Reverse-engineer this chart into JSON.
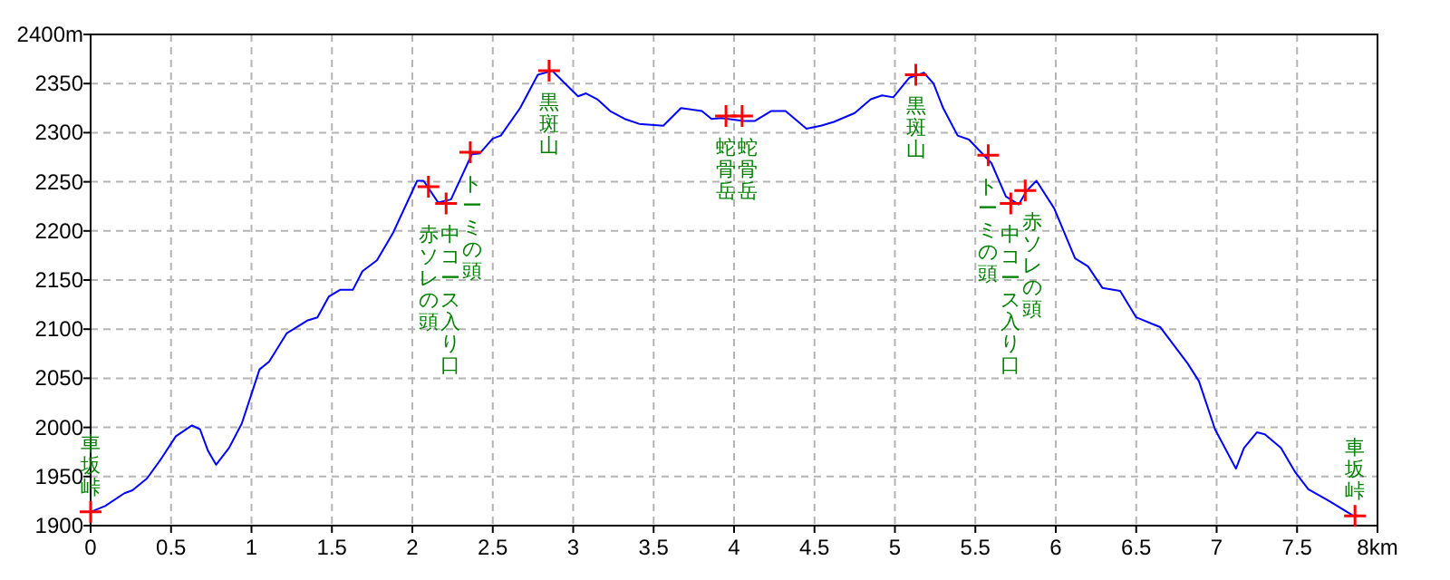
{
  "chart_data": {
    "type": "line",
    "xlim": [
      0,
      8
    ],
    "ylim": [
      1900,
      2400
    ],
    "xticks": [
      0,
      0.5,
      1,
      1.5,
      2,
      2.5,
      3,
      3.5,
      4,
      4.5,
      5,
      5.5,
      6,
      6.5,
      7,
      7.5,
      {
        "value": 8,
        "label": "8km"
      }
    ],
    "yticks": [
      1900,
      1950,
      2000,
      2050,
      2100,
      2150,
      2200,
      2250,
      2300,
      2350,
      {
        "value": 2400,
        "label": "2400m"
      }
    ],
    "grid": true,
    "series": [
      {
        "type": "line",
        "color": "#0000ff",
        "x": [
          0,
          0.09,
          0.21,
          0.26,
          0.35,
          0.43,
          0.53,
          0.63,
          0.68,
          0.73,
          0.78,
          0.86,
          0.94,
          1.05,
          1.11,
          1.22,
          1.28,
          1.35,
          1.41,
          1.48,
          1.55,
          1.63,
          1.69,
          1.78,
          1.88,
          2.03,
          2.07,
          2.16,
          2.24,
          2.37,
          2.42,
          2.5,
          2.55,
          2.67,
          2.78,
          2.87,
          2.95,
          3.03,
          3.08,
          3.15,
          3.23,
          3.32,
          3.41,
          3.56,
          3.67,
          3.8,
          3.86,
          3.92,
          4.06,
          4.13,
          4.23,
          4.32,
          4.45,
          4.54,
          4.62,
          4.75,
          4.85,
          4.92,
          4.99,
          5.09,
          5.18,
          5.24,
          5.3,
          5.39,
          5.46,
          5.6,
          5.69,
          5.77,
          5.82,
          5.88,
          5.99,
          6.12,
          6.2,
          6.29,
          6.4,
          6.5,
          6.65,
          6.82,
          6.89,
          6.99,
          7.12,
          7.17,
          7.25,
          7.3,
          7.4,
          7.49,
          7.57,
          7.7,
          7.85
        ],
        "values": [
          1914,
          1920,
          1933,
          1936,
          1948,
          1966,
          1991,
          2002,
          1998,
          1976,
          1962,
          1979,
          2004,
          2059,
          2067,
          2096,
          2102,
          2109,
          2112,
          2133,
          2140,
          2140,
          2159,
          2170,
          2198,
          2251,
          2251,
          2229,
          2232,
          2278,
          2279,
          2294,
          2297,
          2325,
          2359,
          2363,
          2350,
          2337,
          2340,
          2334,
          2322,
          2314,
          2309,
          2307,
          2325,
          2322,
          2314,
          2315,
          2312,
          2312,
          2322,
          2322,
          2304,
          2307,
          2311,
          2320,
          2334,
          2338,
          2336,
          2356,
          2361,
          2350,
          2325,
          2297,
          2293,
          2269,
          2235,
          2227,
          2241,
          2251,
          2223,
          2172,
          2164,
          2142,
          2139,
          2112,
          2102,
          2065,
          2047,
          1998,
          1958,
          1979,
          1995,
          1993,
          1979,
          1954,
          1937,
          1925,
          1910
        ]
      },
      {
        "type": "scatter",
        "color": "#ff0000",
        "marker": "cross",
        "x": [
          0,
          2.1,
          2.21,
          2.36,
          2.85,
          3.95,
          4.05,
          5.13,
          5.58,
          5.72,
          5.81,
          7.86
        ],
        "values": [
          1914,
          2245,
          2228,
          2280,
          2363,
          2317,
          2317,
          2359,
          2277,
          2228,
          2241,
          1910
        ]
      }
    ],
    "annotations": [
      {
        "text": "車坂峠",
        "x": 0,
        "y": 1914
      },
      {
        "text": "赤ソレの頭",
        "x": 2.1,
        "y": 2245
      },
      {
        "text": "中コース入り口",
        "x": 2.21,
        "y": 2228
      },
      {
        "text": "トーミの頭",
        "x": 2.36,
        "y": 2280
      },
      {
        "text": "黒斑山",
        "x": 2.85,
        "y": 2363
      },
      {
        "text": "蛇骨岳",
        "x": 3.95,
        "y": 2317
      },
      {
        "text": "蛇骨岳",
        "x": 4.05,
        "y": 2317
      },
      {
        "text": "黒斑山",
        "x": 5.13,
        "y": 2359
      },
      {
        "text": "トーミの頭",
        "x": 5.58,
        "y": 2277
      },
      {
        "text": "中コース入り口",
        "x": 5.72,
        "y": 2228
      },
      {
        "text": "赤ソレの頭",
        "x": 5.81,
        "y": 2241
      },
      {
        "text": "車坂峠",
        "x": 7.86,
        "y": 1910
      }
    ]
  }
}
